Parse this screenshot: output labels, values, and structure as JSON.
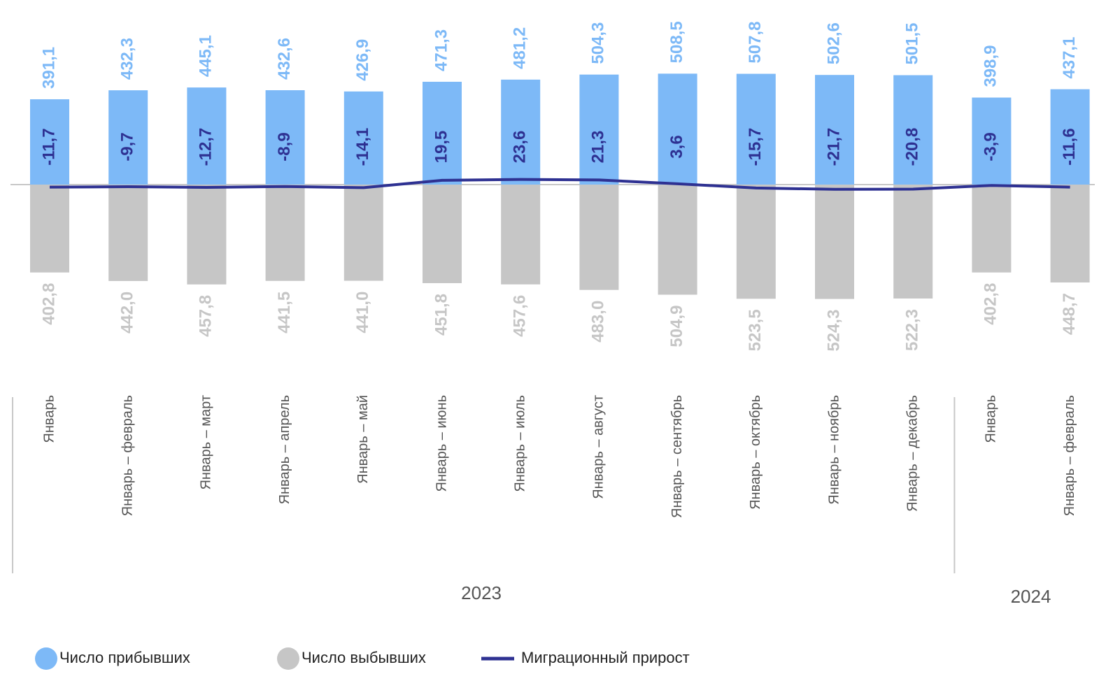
{
  "chart_data": {
    "type": "bar-line",
    "groups": [
      {
        "name": "2023",
        "categories": [
          "Январь",
          "Январь – февраль",
          "Январь – март",
          "Январь – апрель",
          "Январь – май",
          "Январь – июнь",
          "Январь – июль",
          "Январь – август",
          "Январь – сентябрь",
          "Январь – октябрь",
          "Январь – ноябрь",
          "Январь – декабрь"
        ]
      },
      {
        "name": "2024",
        "categories": [
          "Январь",
          "Январь – февраль"
        ]
      }
    ],
    "series": [
      {
        "name": "Число прибывших",
        "type": "bar",
        "direction": "up",
        "color": "#7db9f7",
        "values": [
          391.1,
          432.3,
          445.1,
          432.6,
          426.9,
          471.3,
          481.2,
          504.3,
          508.5,
          507.8,
          502.6,
          501.5,
          398.9,
          437.1
        ],
        "value_labels": [
          "391,1",
          "432,3",
          "445,1",
          "432,6",
          "426,9",
          "471,3",
          "481,2",
          "504,3",
          "508,5",
          "507,8",
          "502,6",
          "501,5",
          "398,9",
          "437,1"
        ]
      },
      {
        "name": "Число выбывших",
        "type": "bar",
        "direction": "down",
        "color": "#c6c6c6",
        "values": [
          402.8,
          442.0,
          457.8,
          441.5,
          441.0,
          451.8,
          457.6,
          483.0,
          504.9,
          523.5,
          524.3,
          522.3,
          402.8,
          448.7
        ],
        "value_labels": [
          "402,8",
          "442,0",
          "457,8",
          "441,5",
          "441,0",
          "451,8",
          "457,6",
          "483,0",
          "504,9",
          "523,5",
          "524,3",
          "522,3",
          "402,8",
          "448,7"
        ]
      },
      {
        "name": "Миграционный прирост",
        "type": "line",
        "color": "#2e3192",
        "values": [
          -11.7,
          -9.7,
          -12.7,
          -8.9,
          -14.1,
          19.5,
          23.6,
          21.3,
          3.6,
          -15.7,
          -21.7,
          -20.8,
          -3.9,
          -11.6
        ],
        "value_labels": [
          "-11,7",
          "-9,7",
          "-12,7",
          "-8,9",
          "-14,1",
          "19,5",
          "23,6",
          "21,3",
          "3,6",
          "-15,7",
          "-21,7",
          "-20,8",
          "-3,9",
          "-11,6"
        ]
      }
    ],
    "legend": "bottom"
  }
}
